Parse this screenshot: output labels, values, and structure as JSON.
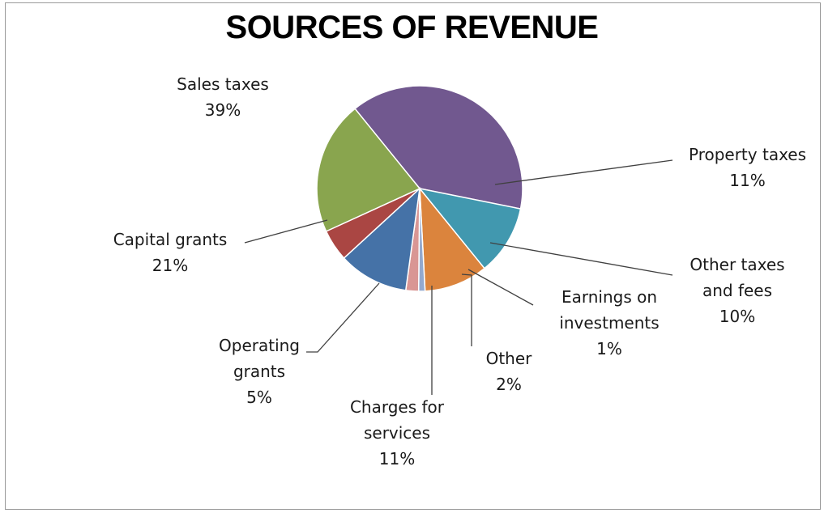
{
  "chart_data": {
    "type": "pie",
    "title": "SOURCES OF REVENUE",
    "start_angle_deg": 129,
    "slices": [
      {
        "label": [
          "Sales taxes"
        ],
        "percent_text": "39%",
        "value": 39,
        "color": "#71588f"
      },
      {
        "label": [
          "Property taxes"
        ],
        "percent_text": "11%",
        "value": 11,
        "color": "#4198af"
      },
      {
        "label": [
          "Other taxes",
          "and fees"
        ],
        "percent_text": "10%",
        "value": 10,
        "color": "#db843d"
      },
      {
        "label": [
          "Earnings on",
          "investments"
        ],
        "percent_text": "1%",
        "value": 1,
        "color": "#93a9cf"
      },
      {
        "label": [
          "Other"
        ],
        "percent_text": "2%",
        "value": 2,
        "color": "#d99694"
      },
      {
        "label": [
          "Charges for",
          "services"
        ],
        "percent_text": "11%",
        "value": 11,
        "color": "#4572a7"
      },
      {
        "label": [
          "Operating",
          "grants"
        ],
        "percent_text": "5%",
        "value": 5,
        "color": "#aa4643"
      },
      {
        "label": [
          "Capital grants"
        ],
        "percent_text": "21%",
        "value": 21,
        "color": "#89a54e"
      }
    ]
  }
}
